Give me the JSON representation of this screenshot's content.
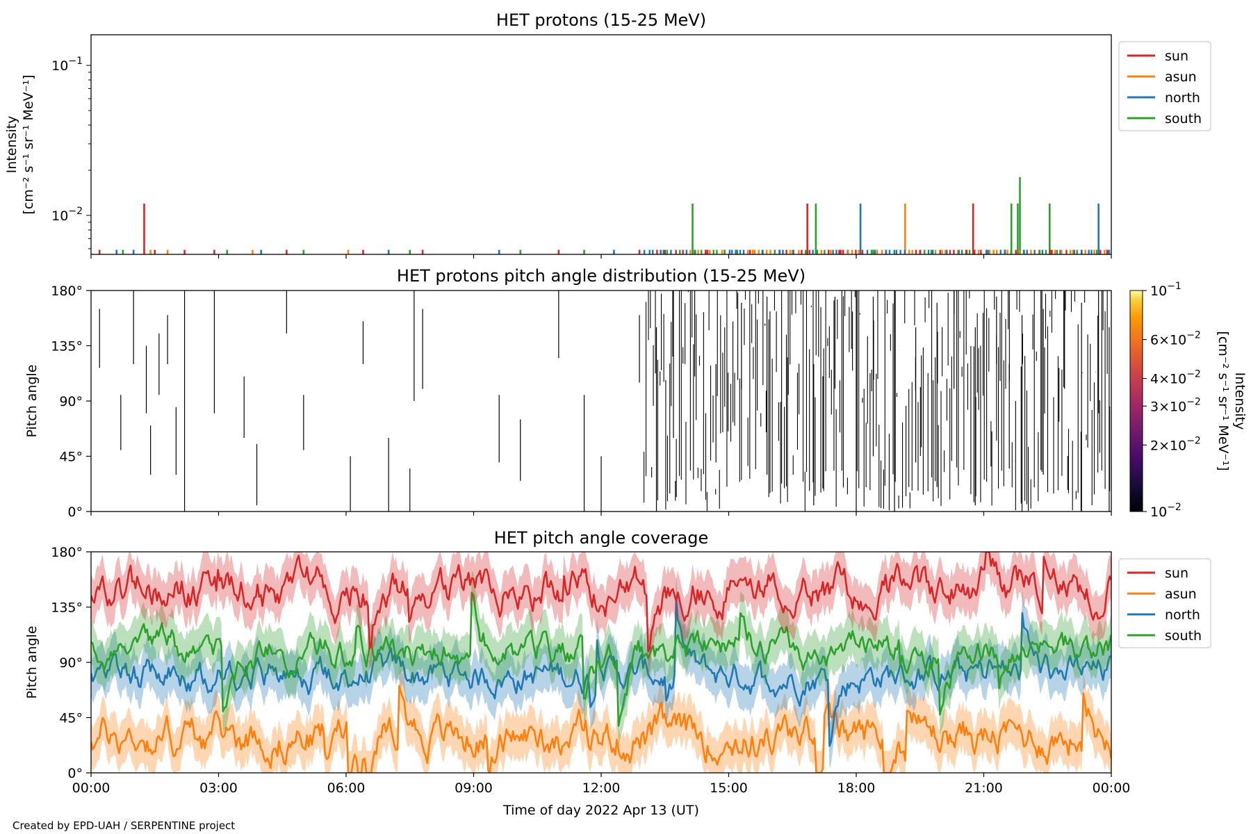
{
  "figure": {
    "footer": "Created by EPD-UAH / SERPENTINE project",
    "xlabel": "Time of day 2022 Apr 13 (UT)",
    "xticks": [
      "00:00",
      "03:00",
      "06:00",
      "09:00",
      "12:00",
      "15:00",
      "18:00",
      "21:00",
      "00:00"
    ]
  },
  "colors": {
    "sun": "#d62728",
    "asun": "#ff7f0e",
    "north": "#1f77b4",
    "south": "#2ca02c"
  },
  "chart_data": [
    {
      "type": "line",
      "title": "HET protons (15-25 MeV)",
      "ylabel_line1": "Intensity",
      "ylabel_line2": "[cm⁻² s⁻¹ sr⁻¹ MeV⁻¹]",
      "yscale": "log",
      "ylim": [
        0.0055,
        0.16
      ],
      "yticks": [
        {
          "value": 0.1,
          "base": "10",
          "exp": "−1"
        },
        {
          "value": 0.01,
          "base": "10",
          "exp": "−2"
        }
      ],
      "xlim_hours": [
        0,
        24
      ],
      "legend": [
        "sun",
        "asun",
        "north",
        "south"
      ],
      "legend_placement": "outside-top-right",
      "series": [
        {
          "name": "sun",
          "spikes": [
            [
              0.2,
              0.0059
            ],
            [
              1.25,
              0.012
            ],
            [
              1.5,
              0.0059
            ],
            [
              2.2,
              0.0059
            ],
            [
              2.9,
              0.0059
            ],
            [
              4.6,
              0.0059
            ],
            [
              6.4,
              0.0059
            ],
            [
              7.8,
              0.0059
            ],
            [
              11.0,
              0.0059
            ],
            [
              12.9,
              0.0059
            ],
            [
              13.5,
              0.0059
            ],
            [
              14.5,
              0.0059
            ],
            [
              15.5,
              0.0059
            ],
            [
              16.2,
              0.0059
            ],
            [
              16.85,
              0.012
            ],
            [
              17.6,
              0.0059
            ],
            [
              18.7,
              0.0059
            ],
            [
              19.5,
              0.0059
            ],
            [
              20.4,
              0.0059
            ],
            [
              20.75,
              0.012
            ],
            [
              21.5,
              0.0059
            ],
            [
              22.6,
              0.0059
            ],
            [
              23.3,
              0.0059
            ],
            [
              23.9,
              0.0059
            ]
          ]
        },
        {
          "name": "asun",
          "spikes": [
            [
              1.4,
              0.0059
            ],
            [
              1.8,
              0.0059
            ],
            [
              3.8,
              0.0059
            ],
            [
              6.05,
              0.0059
            ],
            [
              13.4,
              0.0059
            ],
            [
              14.9,
              0.0059
            ],
            [
              16.5,
              0.0059
            ],
            [
              17.4,
              0.0059
            ],
            [
              19.15,
              0.012
            ],
            [
              20.1,
              0.0059
            ],
            [
              21.95,
              0.0059
            ],
            [
              22.3,
              0.0059
            ],
            [
              23.1,
              0.0059
            ],
            [
              23.6,
              0.0059
            ]
          ]
        },
        {
          "name": "north",
          "spikes": [
            [
              0.6,
              0.0059
            ],
            [
              1.0,
              0.0059
            ],
            [
              4.0,
              0.0059
            ],
            [
              7.0,
              0.0059
            ],
            [
              9.6,
              0.0059
            ],
            [
              12.3,
              0.0059
            ],
            [
              14.2,
              0.0059
            ],
            [
              15.8,
              0.0059
            ],
            [
              17.8,
              0.0059
            ],
            [
              18.1,
              0.012
            ],
            [
              19.8,
              0.0059
            ],
            [
              21.1,
              0.0059
            ],
            [
              22.8,
              0.0059
            ],
            [
              23.7,
              0.012
            ]
          ]
        },
        {
          "name": "south",
          "spikes": [
            [
              0.75,
              0.0059
            ],
            [
              3.2,
              0.0059
            ],
            [
              5.0,
              0.0059
            ],
            [
              7.5,
              0.0059
            ],
            [
              10.1,
              0.0059
            ],
            [
              11.6,
              0.0059
            ],
            [
              14.15,
              0.012
            ],
            [
              15.2,
              0.0059
            ],
            [
              17.05,
              0.012
            ],
            [
              18.4,
              0.0059
            ],
            [
              20.6,
              0.0059
            ],
            [
              21.65,
              0.012
            ],
            [
              21.8,
              0.012
            ],
            [
              21.85,
              0.018
            ],
            [
              22.55,
              0.012
            ],
            [
              23.95,
              0.0059
            ]
          ]
        }
      ]
    },
    {
      "type": "heatmap",
      "title": "HET protons pitch angle distribution (15-25 MeV)",
      "ylabel": "Pitch angle",
      "ylim": [
        0,
        180
      ],
      "yticks": [
        "0°",
        "45°",
        "90°",
        "135°",
        "180°"
      ],
      "xlim_hours": [
        0,
        24
      ],
      "colorbar": {
        "label_line1": "Intensity",
        "label_line2": "[cm⁻² s⁻¹ sr⁻¹ MeV⁻¹]",
        "scale": "log",
        "range": [
          0.01,
          0.1
        ],
        "colormap": "inferno",
        "ticks": [
          {
            "value": 0.1,
            "mant": "",
            "base": "10",
            "exp": "−1"
          },
          {
            "value": 0.06,
            "mant": "6×",
            "base": "10",
            "exp": "−2"
          },
          {
            "value": 0.04,
            "mant": "4×",
            "base": "10",
            "exp": "−2"
          },
          {
            "value": 0.03,
            "mant": "3×",
            "base": "10",
            "exp": "−2"
          },
          {
            "value": 0.02,
            "mant": "2×",
            "base": "10",
            "exp": "−2"
          },
          {
            "value": 0.01,
            "mant": "",
            "base": "10",
            "exp": "−2"
          }
        ]
      },
      "segments_note_hours_ranges": [
        [
          0.2,
          117,
          165
        ],
        [
          0.7,
          50,
          95
        ],
        [
          1.0,
          120,
          180
        ],
        [
          1.3,
          80,
          135
        ],
        [
          1.4,
          30,
          70
        ],
        [
          1.6,
          95,
          145
        ],
        [
          1.8,
          120,
          160
        ],
        [
          2.0,
          30,
          85
        ],
        [
          2.2,
          0,
          180
        ],
        [
          2.9,
          80,
          180
        ],
        [
          3.6,
          60,
          110
        ],
        [
          3.9,
          5,
          55
        ],
        [
          4.6,
          145,
          180
        ],
        [
          5.0,
          50,
          95
        ],
        [
          6.1,
          0,
          45
        ],
        [
          6.4,
          120,
          155
        ],
        [
          7.0,
          0,
          60
        ],
        [
          7.5,
          0,
          35
        ],
        [
          7.6,
          90,
          180
        ],
        [
          7.8,
          100,
          165
        ],
        [
          9.6,
          40,
          95
        ],
        [
          10.1,
          25,
          75
        ],
        [
          11.0,
          125,
          180
        ],
        [
          11.6,
          0,
          95
        ],
        [
          12.0,
          0,
          45
        ],
        [
          12.9,
          105,
          160
        ],
        [
          13.3,
          0,
          150
        ],
        [
          13.7,
          60,
          180
        ],
        [
          14.2,
          110,
          180
        ],
        [
          14.7,
          40,
          120
        ],
        [
          15.3,
          100,
          170
        ],
        [
          15.9,
          30,
          175
        ],
        [
          16.4,
          95,
          180
        ],
        [
          17.0,
          5,
          120
        ],
        [
          17.5,
          100,
          175
        ],
        [
          18.0,
          0,
          180
        ],
        [
          18.4,
          45,
          175
        ],
        [
          18.9,
          0,
          180
        ],
        [
          19.4,
          40,
          150
        ],
        [
          19.9,
          20,
          170
        ],
        [
          20.3,
          100,
          180
        ],
        [
          20.8,
          5,
          150
        ],
        [
          21.3,
          120,
          175
        ],
        [
          21.6,
          35,
          120
        ],
        [
          21.9,
          0,
          160
        ],
        [
          22.4,
          30,
          165
        ],
        [
          22.9,
          100,
          180
        ],
        [
          23.3,
          0,
          170
        ],
        [
          23.7,
          80,
          180
        ],
        [
          23.95,
          0,
          150
        ]
      ]
    },
    {
      "type": "line",
      "title": "HET pitch angle coverage",
      "ylabel": "Pitch angle",
      "ylim": [
        0,
        180
      ],
      "yticks": [
        "0°",
        "45°",
        "90°",
        "135°",
        "180°"
      ],
      "xlim_hours": [
        0,
        24
      ],
      "legend": [
        "sun",
        "asun",
        "north",
        "south"
      ],
      "legend_placement": "outside-top-right",
      "series": [
        {
          "name": "sun",
          "mean_deg": 150,
          "spread_deg": 22,
          "band_halfwidth_deg": 18
        },
        {
          "name": "asun",
          "mean_deg": 30,
          "spread_deg": 22,
          "band_halfwidth_deg": 18
        },
        {
          "name": "north",
          "mean_deg": 80,
          "spread_deg": 18,
          "band_halfwidth_deg": 18
        },
        {
          "name": "south",
          "mean_deg": 100,
          "spread_deg": 18,
          "band_halfwidth_deg": 18
        }
      ]
    }
  ]
}
